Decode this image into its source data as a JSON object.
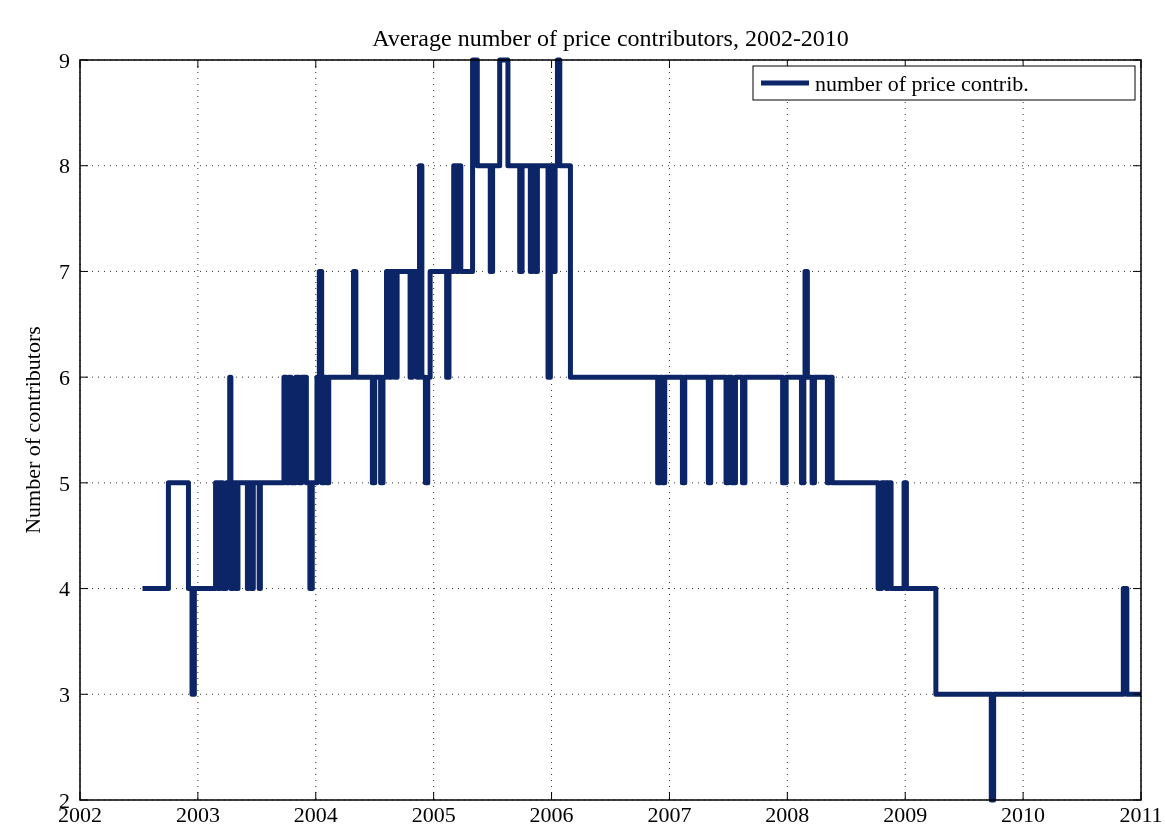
{
  "chart_data": {
    "type": "step",
    "title": "Average number of price contributors, 2002-2010",
    "ylabel": "Number of contributors",
    "xlim": [
      2002,
      2011
    ],
    "xticks": [
      2002,
      2003,
      2004,
      2005,
      2006,
      2007,
      2008,
      2009,
      2010,
      2011
    ],
    "ylim": [
      2,
      9
    ],
    "yticks": [
      2,
      3,
      4,
      5,
      6,
      7,
      8,
      9
    ],
    "grid": true,
    "legend": "top right",
    "line_style": "solid",
    "marker": "none",
    "series": [
      {
        "name": "number of price contrib.",
        "color": "#0c2566",
        "x": [
          2002.53,
          2002.75,
          2002.92,
          2002.95,
          2002.97,
          2003.15,
          2003.17,
          2003.19,
          2003.21,
          2003.24,
          2003.27,
          2003.28,
          2003.3,
          2003.32,
          2003.34,
          2003.42,
          2003.43,
          2003.45,
          2003.47,
          2003.52,
          2003.53,
          2003.73,
          2003.75,
          2003.77,
          2003.79,
          2003.83,
          2003.86,
          2003.88,
          2003.92,
          2003.95,
          2003.97,
          2004.01,
          2004.03,
          2004.05,
          2004.07,
          2004.09,
          2004.11,
          2004.13,
          2004.32,
          2004.34,
          2004.48,
          2004.5,
          2004.55,
          2004.57,
          2004.6,
          2004.62,
          2004.64,
          2004.67,
          2004.69,
          2004.8,
          2004.82,
          2004.86,
          2004.88,
          2004.9,
          2004.93,
          2004.95,
          2004.97,
          2005.11,
          2005.13,
          2005.17,
          2005.19,
          2005.21,
          2005.23,
          2005.33,
          2005.37,
          2005.48,
          2005.5,
          2005.56,
          2005.63,
          2005.73,
          2005.75,
          2005.82,
          2005.84,
          2005.86,
          2005.88,
          2005.97,
          2005.99,
          2006.01,
          2006.03,
          2006.05,
          2006.07,
          2006.16,
          2006.9,
          2006.92,
          2006.94,
          2006.96,
          2007.11,
          2007.13,
          2007.33,
          2007.35,
          2007.48,
          2007.5,
          2007.53,
          2007.56,
          2007.62,
          2007.64,
          2007.96,
          2007.99,
          2008.12,
          2008.14,
          2008.15,
          2008.17,
          2008.21,
          2008.23,
          2008.34,
          2008.36,
          2008.38,
          2008.41,
          2008.77,
          2008.8,
          2008.84,
          2008.86,
          2008.88,
          2008.99,
          2009.01,
          2009.26,
          2009.73,
          2009.75,
          2010.85,
          2010.88,
          2011
        ],
        "values": [
          4,
          5,
          4,
          3,
          4,
          5,
          4,
          5,
          4,
          5,
          6,
          4,
          5,
          4,
          5,
          4,
          5,
          4,
          5,
          4,
          5,
          6,
          5,
          6,
          5,
          6,
          5,
          6,
          5,
          4,
          5,
          6,
          7,
          5,
          6,
          5,
          6,
          6,
          7,
          6,
          5,
          6,
          5,
          6,
          7,
          6,
          7,
          6,
          7,
          6,
          7,
          6,
          8,
          6,
          5,
          6,
          7,
          6,
          7,
          8,
          7,
          8,
          7,
          9,
          8,
          7,
          8,
          9,
          8,
          7,
          8,
          7,
          8,
          7,
          8,
          6,
          8,
          7,
          8,
          9,
          8,
          6,
          5,
          6,
          5,
          6,
          5,
          6,
          5,
          6,
          5,
          6,
          5,
          6,
          5,
          6,
          5,
          6,
          5,
          6,
          7,
          6,
          5,
          6,
          5,
          6,
          5,
          5,
          4,
          5,
          4,
          5,
          4,
          5,
          4,
          3,
          2,
          3,
          4,
          3,
          3
        ]
      }
    ]
  }
}
